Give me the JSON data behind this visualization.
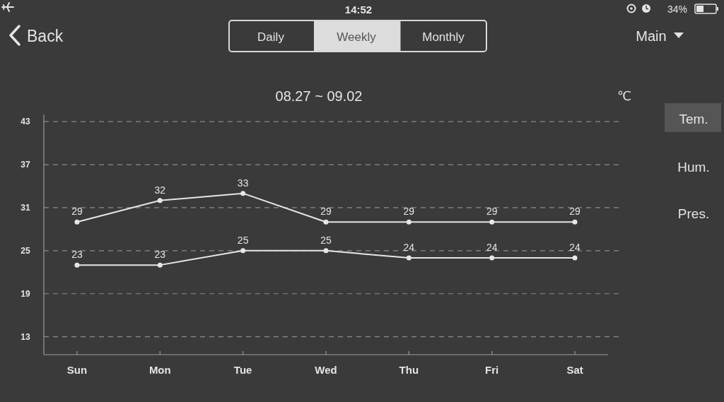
{
  "chart_data": {
    "type": "line",
    "title": "08.27 ~ 09.02",
    "ylabel": "℃",
    "categories": [
      "Sun",
      "Mon",
      "Tue",
      "Wed",
      "Thu",
      "Fri",
      "Sat"
    ],
    "series": [
      {
        "color": "#e6e6e6",
        "values": [
          29,
          32,
          33,
          29,
          29,
          29,
          29
        ]
      },
      {
        "color": "#e6e6e6",
        "values": [
          23,
          23,
          25,
          25,
          24,
          24,
          24
        ]
      }
    ],
    "ylim": [
      10.5,
      44
    ],
    "yticks": [
      13,
      19,
      25,
      31,
      37,
      43
    ],
    "grid": "y",
    "marker": "circle",
    "data_labels": true,
    "annotations": [
      "14:52",
      "34%",
      "Back",
      "Daily",
      "Weekly",
      "Monthly",
      "Main",
      "Tem.",
      "Hum.",
      "Pres."
    ]
  }
}
